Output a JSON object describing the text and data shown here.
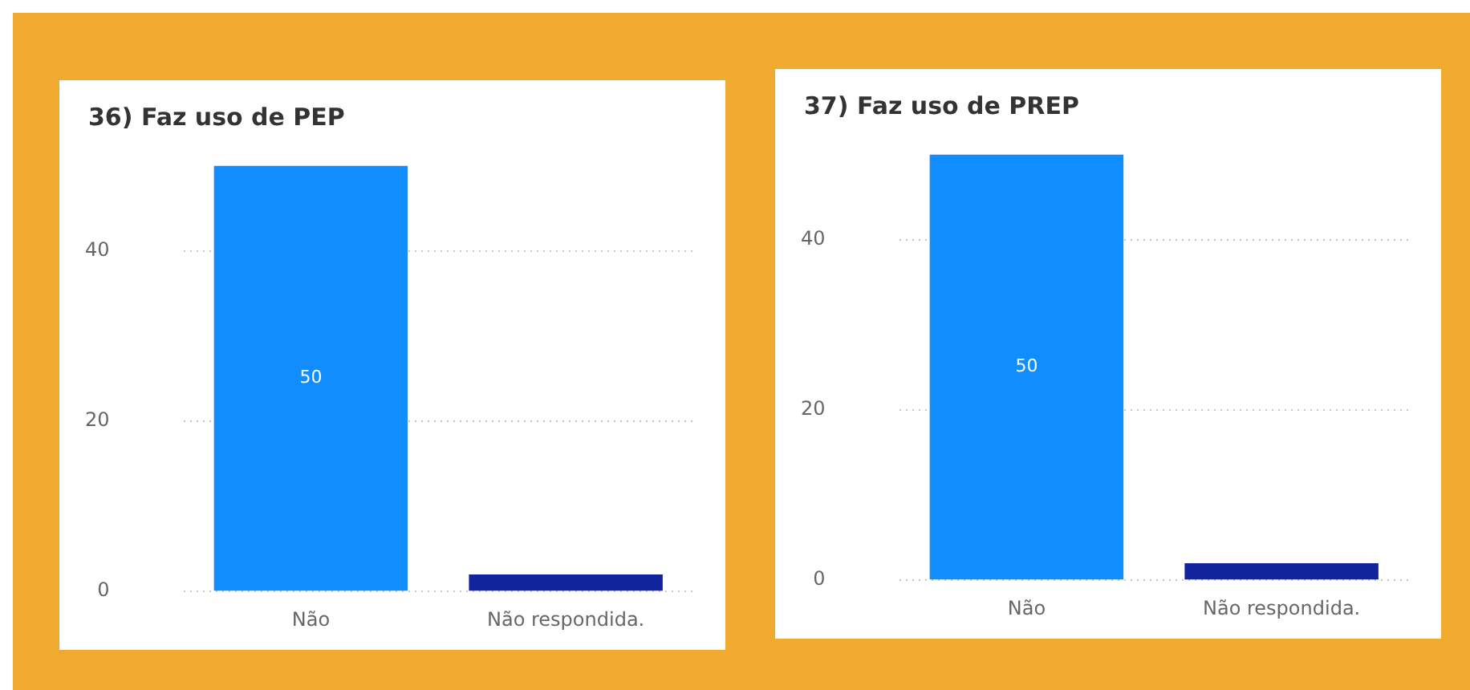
{
  "chart_data": [
    {
      "type": "bar",
      "title": "36) Faz uso de PEP",
      "categories": [
        "Não",
        "Não respondida."
      ],
      "values": [
        50,
        2
      ],
      "colors": [
        "#118dff",
        "#12239e"
      ],
      "value_labels": [
        "50",
        null
      ],
      "ylim": [
        0,
        50
      ],
      "yticks": [
        0,
        20,
        40
      ],
      "grid": "y",
      "legend": false
    },
    {
      "type": "bar",
      "title": "37) Faz uso de PREP",
      "categories": [
        "Não",
        "Não respondida."
      ],
      "values": [
        50,
        2
      ],
      "colors": [
        "#118dff",
        "#12239e"
      ],
      "value_labels": [
        "50",
        null
      ],
      "ylim": [
        0,
        50
      ],
      "yticks": [
        0,
        20,
        40
      ],
      "grid": "y",
      "legend": false
    }
  ]
}
